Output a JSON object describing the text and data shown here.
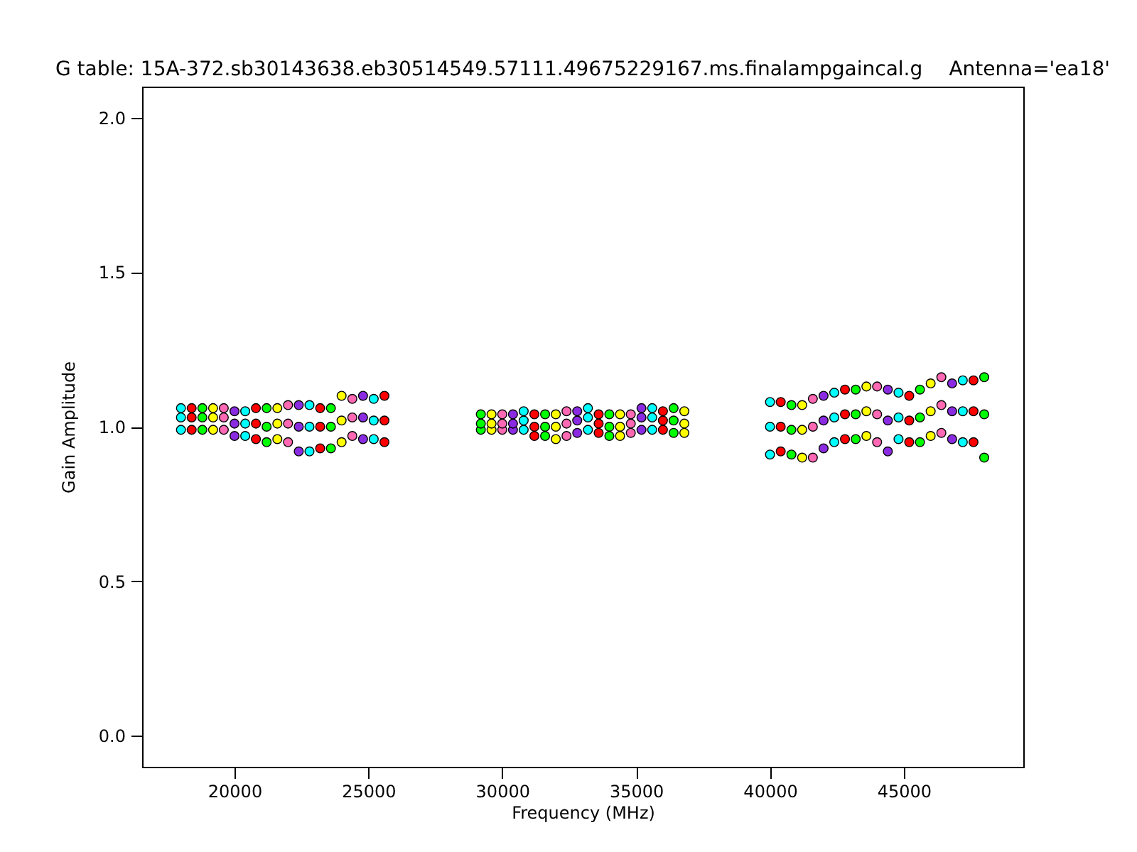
{
  "chart_data": {
    "type": "scatter",
    "title": "G table: 15A-372.sb30143638.eb30514549.57111.49675229167.ms.finalampgaincal.g",
    "annotations": [
      "Antenna='ea18'"
    ],
    "xlabel": "Frequency (MHz)",
    "ylabel": "Gain Amplitude",
    "xlim": [
      16550,
      49460
    ],
    "ylim": [
      -0.1,
      2.1
    ],
    "xticks": [
      20000,
      25000,
      30000,
      35000,
      40000,
      45000
    ],
    "yticks": [
      {
        "value": 0,
        "label": "0.0"
      },
      {
        "value": 0.5,
        "label": "0.5"
      },
      {
        "value": 1,
        "label": "1.0"
      },
      {
        "value": 1.5,
        "label": "1.5"
      },
      {
        "value": 2,
        "label": "2.0"
      }
    ],
    "grid": false,
    "legend": false,
    "marker": "circle",
    "series": [
      {
        "color": "#00ffff",
        "x": [
          18000,
          18000,
          18000,
          20400,
          20400,
          20400,
          22800,
          22800,
          22800,
          25200,
          25200,
          25200,
          30800,
          30800,
          30800,
          33200,
          33200,
          33200,
          35600,
          35600,
          35600,
          40000,
          40000,
          40000,
          42400,
          42400,
          42400,
          44800,
          44800,
          44800,
          47200,
          47200,
          47200
        ],
        "values": [
          0.99,
          1.03,
          1.06,
          0.97,
          1.01,
          1.05,
          0.92,
          1.0,
          1.07,
          0.96,
          1.02,
          1.09,
          0.99,
          1.02,
          1.05,
          0.99,
          1.03,
          1.06,
          0.99,
          1.03,
          1.06,
          0.91,
          1.0,
          1.08,
          0.95,
          1.03,
          1.11,
          0.96,
          1.03,
          1.11,
          0.95,
          1.05,
          1.15
        ]
      },
      {
        "color": "#ff0000",
        "x": [
          18400,
          18400,
          18400,
          20800,
          20800,
          20800,
          23200,
          23200,
          23200,
          25600,
          25600,
          25600,
          31200,
          31200,
          31200,
          33600,
          33600,
          33600,
          36000,
          36000,
          36000,
          40400,
          40400,
          40400,
          42800,
          42800,
          42800,
          45200,
          45200,
          45200,
          47600,
          47600,
          47600
        ],
        "values": [
          0.99,
          1.03,
          1.06,
          0.96,
          1.01,
          1.06,
          0.93,
          1.0,
          1.06,
          0.95,
          1.02,
          1.1,
          0.97,
          1.0,
          1.04,
          0.98,
          1.01,
          1.04,
          0.99,
          1.02,
          1.05,
          0.92,
          1.0,
          1.08,
          0.96,
          1.04,
          1.12,
          0.95,
          1.02,
          1.1,
          0.95,
          1.05,
          1.15
        ]
      },
      {
        "color": "#00ff00",
        "x": [
          18800,
          18800,
          18800,
          21200,
          21200,
          21200,
          23600,
          23600,
          23600,
          29200,
          29200,
          29200,
          31600,
          31600,
          31600,
          34000,
          34000,
          34000,
          36400,
          36400,
          36400,
          40800,
          40800,
          40800,
          43200,
          43200,
          43200,
          45600,
          45600,
          45600,
          48000,
          48000,
          48000
        ],
        "values": [
          0.99,
          1.03,
          1.06,
          0.95,
          1.0,
          1.06,
          0.93,
          1.0,
          1.06,
          0.99,
          1.01,
          1.04,
          0.97,
          1.0,
          1.04,
          0.97,
          1.0,
          1.04,
          0.98,
          1.02,
          1.06,
          0.91,
          0.99,
          1.07,
          0.96,
          1.04,
          1.12,
          0.95,
          1.03,
          1.12,
          0.9,
          1.04,
          1.16
        ]
      },
      {
        "color": "#ffff00",
        "x": [
          19200,
          19200,
          19200,
          21600,
          21600,
          21600,
          24000,
          24000,
          24000,
          29600,
          29600,
          29600,
          32000,
          32000,
          32000,
          34400,
          34400,
          34400,
          36800,
          36800,
          36800,
          41200,
          41200,
          41200,
          43600,
          43600,
          43600,
          46000,
          46000,
          46000
        ],
        "values": [
          0.99,
          1.03,
          1.06,
          0.96,
          1.01,
          1.06,
          0.95,
          1.02,
          1.1,
          0.99,
          1.01,
          1.04,
          0.96,
          1.0,
          1.04,
          0.97,
          1.0,
          1.04,
          0.98,
          1.01,
          1.05,
          0.9,
          0.99,
          1.07,
          0.97,
          1.05,
          1.13,
          0.97,
          1.05,
          1.14
        ]
      },
      {
        "color": "#ff69b4",
        "x": [
          19600,
          19600,
          19600,
          22000,
          22000,
          22000,
          24400,
          24400,
          24400,
          30000,
          30000,
          30000,
          32400,
          32400,
          32400,
          34800,
          34800,
          34800,
          41600,
          41600,
          41600,
          44000,
          44000,
          44000,
          46400,
          46400,
          46400
        ],
        "values": [
          0.99,
          1.03,
          1.06,
          0.95,
          1.01,
          1.07,
          0.97,
          1.03,
          1.09,
          0.99,
          1.01,
          1.04,
          0.97,
          1.01,
          1.05,
          0.98,
          1.01,
          1.04,
          0.9,
          1.0,
          1.09,
          0.95,
          1.04,
          1.13,
          0.98,
          1.07,
          1.16
        ]
      },
      {
        "color": "#8a2be2",
        "x": [
          20000,
          20000,
          20000,
          22400,
          22400,
          22400,
          24800,
          24800,
          24800,
          30400,
          30400,
          30400,
          32800,
          32800,
          32800,
          35200,
          35200,
          35200,
          42000,
          42000,
          42000,
          44400,
          44400,
          44400,
          46800,
          46800,
          46800
        ],
        "values": [
          0.97,
          1.01,
          1.05,
          0.92,
          1.0,
          1.07,
          0.96,
          1.03,
          1.1,
          0.99,
          1.01,
          1.04,
          0.98,
          1.02,
          1.05,
          0.99,
          1.03,
          1.06,
          0.93,
          1.02,
          1.1,
          0.92,
          1.02,
          1.12,
          0.96,
          1.05,
          1.14
        ]
      }
    ]
  }
}
